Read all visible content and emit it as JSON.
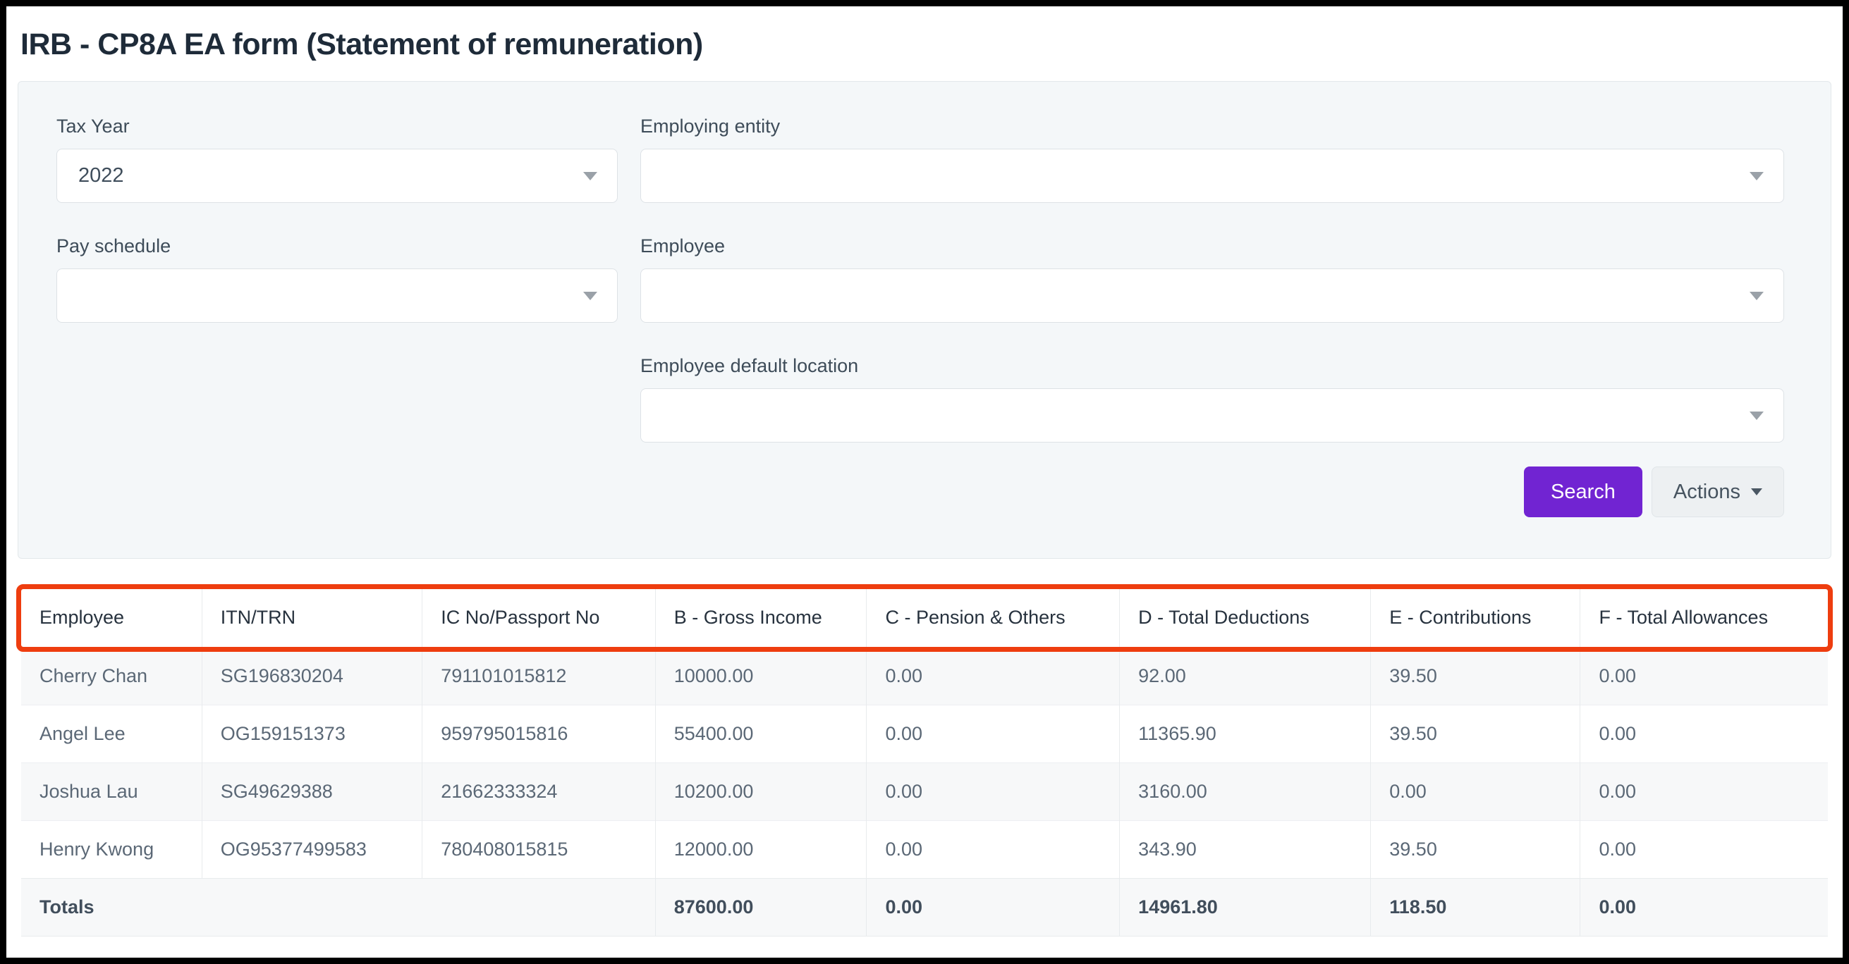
{
  "page": {
    "title": "IRB - CP8A EA form (Statement of remuneration)"
  },
  "filters": {
    "tax_year": {
      "label": "Tax Year",
      "value": "2022"
    },
    "employing_entity": {
      "label": "Employing entity",
      "value": ""
    },
    "pay_schedule": {
      "label": "Pay schedule",
      "value": ""
    },
    "employee": {
      "label": "Employee",
      "value": ""
    },
    "employee_default_location": {
      "label": "Employee default location",
      "value": ""
    }
  },
  "buttons": {
    "search": "Search",
    "actions": "Actions"
  },
  "colors": {
    "accent_purple": "#7124d2",
    "highlight_orange": "#ee3d0f",
    "panel_background": "#f4f7f9"
  },
  "icons": {
    "select_caret": "chevron-down-icon",
    "actions_caret": "chevron-down-icon"
  },
  "table": {
    "columns": [
      "Employee",
      "ITN/TRN",
      "IC No/Passport No",
      "B - Gross Income",
      "C - Pension & Others",
      "D - Total Deductions",
      "E - Contributions",
      "F - Total Allowances"
    ],
    "column_widths_percent": [
      10.0,
      12.2,
      12.9,
      11.7,
      14.0,
      13.9,
      11.6,
      13.7
    ],
    "rows": [
      [
        "Cherry Chan",
        "SG196830204",
        "791101015812",
        "10000.00",
        "0.00",
        "92.00",
        "39.50",
        "0.00"
      ],
      [
        "Angel Lee",
        "OG159151373",
        "959795015816",
        "55400.00",
        "0.00",
        "11365.90",
        "39.50",
        "0.00"
      ],
      [
        "Joshua Lau",
        "SG49629388",
        "21662333324",
        "10200.00",
        "0.00",
        "3160.00",
        "0.00",
        "0.00"
      ],
      [
        "Henry Kwong",
        "OG95377499583",
        "780408015815",
        "12000.00",
        "0.00",
        "343.90",
        "39.50",
        "0.00"
      ]
    ],
    "totals": {
      "label": "Totals",
      "values": [
        "87600.00",
        "0.00",
        "14961.80",
        "118.50",
        "0.00"
      ]
    }
  }
}
